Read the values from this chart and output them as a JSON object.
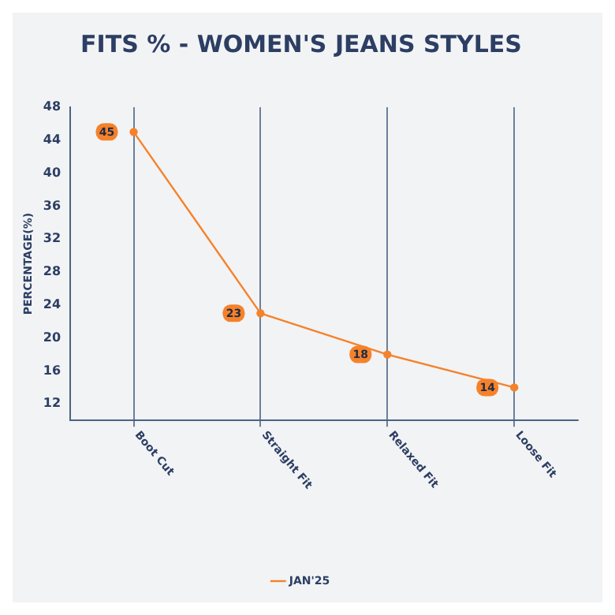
{
  "chart_data": {
    "type": "line",
    "title": "FITS % - WOMEN'S JEANS STYLES",
    "ylabel": "PERCENTAGE(%)",
    "categories": [
      "Boot Cut",
      "Straight Fit",
      "Relaxed Fit",
      "Loose Fit"
    ],
    "series": [
      {
        "name": "JAN'25",
        "color": "#f5822a",
        "values": [
          45,
          23,
          18,
          14
        ]
      }
    ],
    "ylim": [
      10,
      48
    ],
    "yticks": [
      12,
      16,
      20,
      24,
      28,
      32,
      36,
      40,
      44,
      48
    ],
    "grid": "x",
    "legend": "bottom",
    "marker": "circle",
    "line_style": "solid",
    "data_labels": true
  }
}
